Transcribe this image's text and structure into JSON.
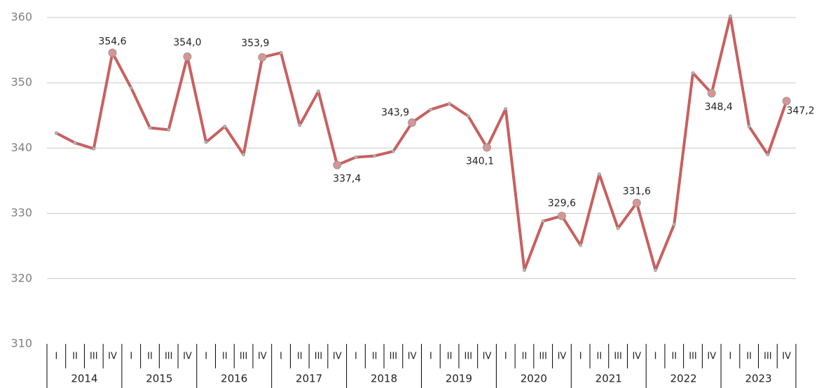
{
  "chart_data": {
    "type": "line",
    "categories": [
      "I",
      "II",
      "III",
      "IV",
      "I",
      "II",
      "III",
      "IV",
      "I",
      "II",
      "III",
      "IV",
      "I",
      "II",
      "III",
      "IV",
      "I",
      "II",
      "III",
      "IV",
      "I",
      "II",
      "III",
      "IV",
      "I",
      "II",
      "III",
      "IV",
      "I",
      "II",
      "III",
      "IV",
      "I",
      "II",
      "III",
      "IV",
      "I",
      "II",
      "III",
      "IV"
    ],
    "groups": [
      "2014",
      "2015",
      "2016",
      "2017",
      "2018",
      "2019",
      "2020",
      "2021",
      "2022",
      "2023"
    ],
    "series": [
      {
        "color": "#c8605f",
        "values": [
          342.3,
          340.8,
          339.9,
          354.6,
          349.2,
          343.1,
          342.8,
          354.0,
          340.9,
          343.3,
          339.0,
          353.9,
          354.6,
          343.5,
          348.7,
          337.4,
          338.6,
          338.8,
          339.5,
          343.9,
          345.9,
          346.8,
          344.9,
          340.1,
          346.0,
          321.3,
          328.8,
          329.6,
          325.1,
          336.0,
          327.7,
          331.6,
          321.3,
          328.3,
          351.5,
          348.4,
          360.2,
          343.3,
          339.0,
          347.2
        ],
        "value_labels": [
          null,
          null,
          null,
          "354,6",
          null,
          null,
          null,
          "354,0",
          null,
          null,
          null,
          "353,9",
          null,
          null,
          null,
          "337,4",
          null,
          null,
          null,
          "343,9",
          null,
          null,
          null,
          "340,1",
          null,
          null,
          null,
          "329,6",
          null,
          null,
          null,
          "331,6",
          null,
          null,
          null,
          "348,4",
          null,
          null,
          null,
          "347,2"
        ]
      }
    ],
    "ylim": [
      310,
      360
    ],
    "yticks": [
      310,
      320,
      330,
      340,
      350,
      360
    ],
    "grid": true
  }
}
